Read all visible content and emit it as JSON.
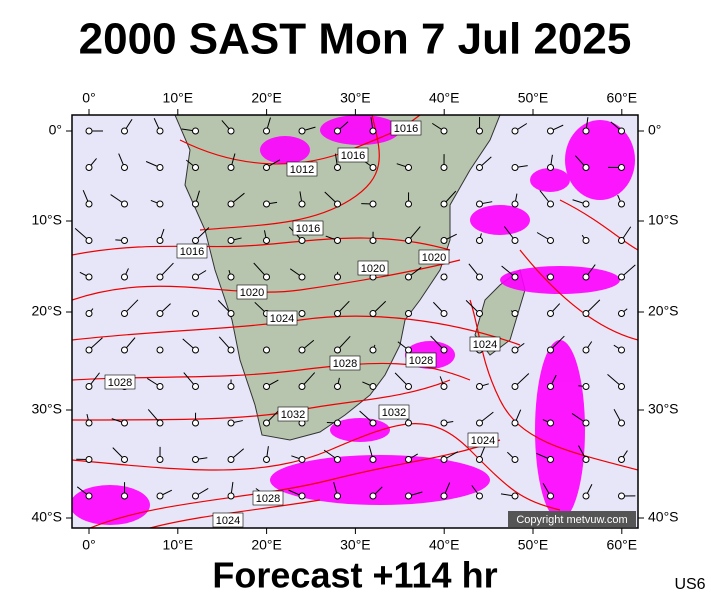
{
  "title": "2000 SAST Mon 7 Jul 2025",
  "subtitle": "Forecast +114 hr",
  "code": "US6",
  "copyright": "Copyright metvuw.com",
  "lon_labels": [
    "0°",
    "10°E",
    "20°E",
    "30°E",
    "40°E",
    "50°E",
    "60°E"
  ],
  "lat_labels": [
    "0°",
    "10°S",
    "20°S",
    "30°S",
    "40°S"
  ],
  "isobar_labels": [
    "1012",
    "1016",
    "1016",
    "1016",
    "1016",
    "1020",
    "1020",
    "1020",
    "1024",
    "1024",
    "1028",
    "1028",
    "1028",
    "1032",
    "1032",
    "1024",
    "1028",
    "1024"
  ]
}
